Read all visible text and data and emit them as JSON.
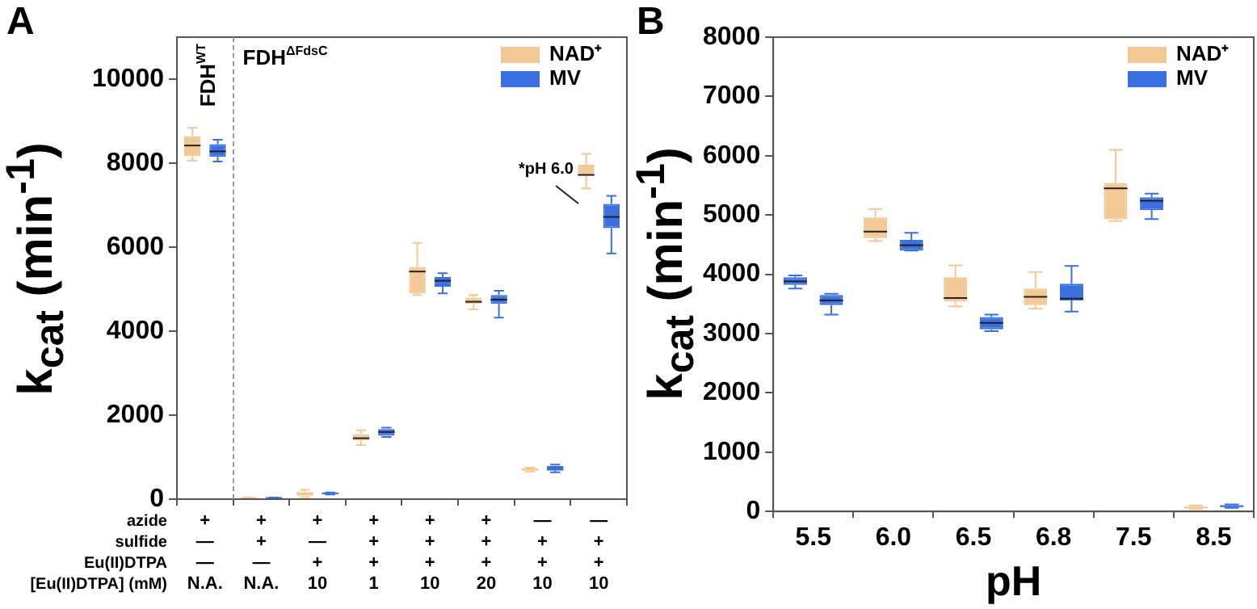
{
  "chart_data": [
    {
      "type": "box",
      "title": "A",
      "ylabel": "k$_{cat}$ (min$^{-1}$)",
      "xlabel": "azide\nsulfide\nEu(II)DTPA\n[Eu(II)DTPA] (mM)",
      "categories": [
        "+\n—\n—\nN.A.",
        "+\n+\n—\nN.A.",
        "+\n—\n+\n10",
        "+\n+\n+\n1",
        "+\n+\n+\n10",
        "+\n+\n+\n20",
        "—\n+\n+\n10",
        "—\n+\n+\n10"
      ],
      "series": [
        {
          "name": "NAD⁺",
          "color": "#f2c894",
          "boxes": [
            {
              "low": 8060,
              "q1": 8170,
              "median": 8420,
              "q3": 8640,
              "high": 8840
            },
            {
              "low": 20,
              "q1": 25,
              "median": 30,
              "q3": 35,
              "high": 40
            },
            {
              "low": 50,
              "q1": 80,
              "median": 130,
              "q3": 170,
              "high": 220
            },
            {
              "low": 1290,
              "q1": 1400,
              "median": 1450,
              "q3": 1550,
              "high": 1640
            },
            {
              "low": 4860,
              "q1": 4900,
              "median": 5420,
              "q3": 5520,
              "high": 6100
            },
            {
              "low": 4520,
              "q1": 4650,
              "median": 4700,
              "q3": 4800,
              "high": 4860
            },
            {
              "low": 660,
              "q1": 690,
              "median": 700,
              "q3": 730,
              "high": 750
            },
            {
              "low": 7400,
              "q1": 7700,
              "median": 7720,
              "q3": 7960,
              "high": 8220
            }
          ]
        },
        {
          "name": "MV",
          "color": "#3a70e0",
          "boxes": [
            {
              "low": 8040,
              "q1": 8150,
              "median": 8280,
              "q3": 8450,
              "high": 8560
            },
            {
              "low": 20,
              "q1": 25,
              "median": 30,
              "q3": 35,
              "high": 40
            },
            {
              "low": 110,
              "q1": 120,
              "median": 140,
              "q3": 150,
              "high": 160
            },
            {
              "low": 1480,
              "q1": 1510,
              "median": 1600,
              "q3": 1670,
              "high": 1700
            },
            {
              "low": 4900,
              "q1": 5060,
              "median": 5200,
              "q3": 5290,
              "high": 5380
            },
            {
              "low": 4320,
              "q1": 4650,
              "median": 4750,
              "q3": 4860,
              "high": 4960
            },
            {
              "low": 640,
              "q1": 680,
              "median": 730,
              "q3": 790,
              "high": 820
            },
            {
              "low": 5850,
              "q1": 6450,
              "median": 6720,
              "q3": 7030,
              "high": 7220
            }
          ]
        }
      ],
      "ylim": [
        0,
        11000
      ],
      "yticks": [
        0,
        2000,
        4000,
        6000,
        8000,
        10000
      ],
      "grid": false,
      "legend": "top right",
      "annotations": [
        "FDH$^{WT}$",
        "FDH$^{ΔFdsC}$",
        "*pH 6.0"
      ]
    },
    {
      "type": "box",
      "title": "B",
      "ylabel": "k$_{cat}$ (min$^{-1}$)",
      "xlabel": "pH",
      "categories": [
        "5.5",
        "6.0",
        "6.5",
        "6.8",
        "7.5",
        "8.5"
      ],
      "series": [
        {
          "name": "NAD⁺",
          "color": "#f2c894",
          "colors": [
            "#3a70e0",
            "#f2c894",
            "#f2c894",
            "#f2c894",
            "#f2c894",
            "#f2c894"
          ],
          "boxes": [
            {
              "low": 3760,
              "q1": 3820,
              "median": 3880,
              "q3": 3950,
              "high": 3980
            },
            {
              "low": 4560,
              "q1": 4610,
              "median": 4720,
              "q3": 4960,
              "high": 5100
            },
            {
              "low": 3460,
              "q1": 3540,
              "median": 3600,
              "q3": 3950,
              "high": 4150
            },
            {
              "low": 3420,
              "q1": 3480,
              "median": 3620,
              "q3": 3760,
              "high": 4040
            },
            {
              "low": 4900,
              "q1": 4930,
              "median": 5450,
              "q3": 5540,
              "high": 6100
            },
            {
              "low": 40,
              "q1": 55,
              "median": 65,
              "q3": 80,
              "high": 100
            }
          ]
        },
        {
          "name": "MV",
          "color": "#3a70e0",
          "boxes": [
            {
              "low": 3320,
              "q1": 3480,
              "median": 3560,
              "q3": 3650,
              "high": 3670
            },
            {
              "low": 4400,
              "q1": 4400,
              "median": 4490,
              "q3": 4580,
              "high": 4700
            },
            {
              "low": 3040,
              "q1": 3070,
              "median": 3180,
              "q3": 3280,
              "high": 3320
            },
            {
              "low": 3370,
              "q1": 3560,
              "median": 3590,
              "q3": 3840,
              "high": 4140
            },
            {
              "low": 4930,
              "q1": 5080,
              "median": 5240,
              "q3": 5300,
              "high": 5360
            },
            {
              "low": 60,
              "q1": 75,
              "median": 90,
              "q3": 100,
              "high": 120
            }
          ]
        }
      ],
      "ylim": [
        0,
        8000
      ],
      "yticks": [
        0,
        1000,
        2000,
        3000,
        4000,
        5000,
        6000,
        7000,
        8000
      ],
      "grid": false,
      "legend": "top right"
    }
  ]
}
